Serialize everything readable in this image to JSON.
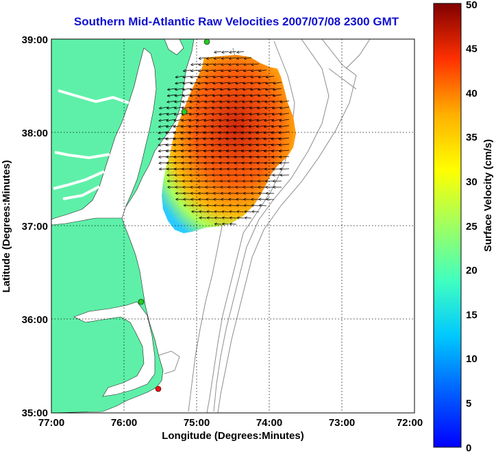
{
  "title": "Southern Mid-Atlantic Raw Velocities 2007/07/08 2300 GMT",
  "x_axis": {
    "label": "Longitude (Degrees:Minutes)",
    "ticks": [
      "77:00",
      "76:00",
      "75:00",
      "74:00",
      "73:00",
      "72:00"
    ]
  },
  "y_axis": {
    "label": "Latitude (Degrees:Minutes)",
    "ticks": [
      "39:00",
      "38:00",
      "37:00",
      "36:00",
      "35:00"
    ]
  },
  "colorbar": {
    "label": "Surface Velocity (cm/s)",
    "ticks": [
      "0",
      "5",
      "10",
      "15",
      "20",
      "25",
      "30",
      "35",
      "40",
      "45",
      "50"
    ],
    "range": [
      0,
      50
    ],
    "colormap": "jet"
  },
  "colors": {
    "title": "#1010d0",
    "land": "#5ef0a8",
    "bathymetry": "#8c8c8c",
    "site_green": "#22cc22",
    "site_red": "#ee1111"
  },
  "chart_data": {
    "type": "map",
    "lon_range": [
      -77,
      -72
    ],
    "lat_range": [
      35,
      39
    ],
    "grid": true,
    "radar_sites": [
      {
        "lon": -75.13,
        "lat": 38.98,
        "status": "green"
      },
      {
        "lon": -75.17,
        "lat": 38.23,
        "status": "green"
      },
      {
        "lon": -75.7,
        "lat": 36.18,
        "status": "green"
      },
      {
        "lon": -75.48,
        "lat": 35.25,
        "status": "red"
      }
    ]
  }
}
